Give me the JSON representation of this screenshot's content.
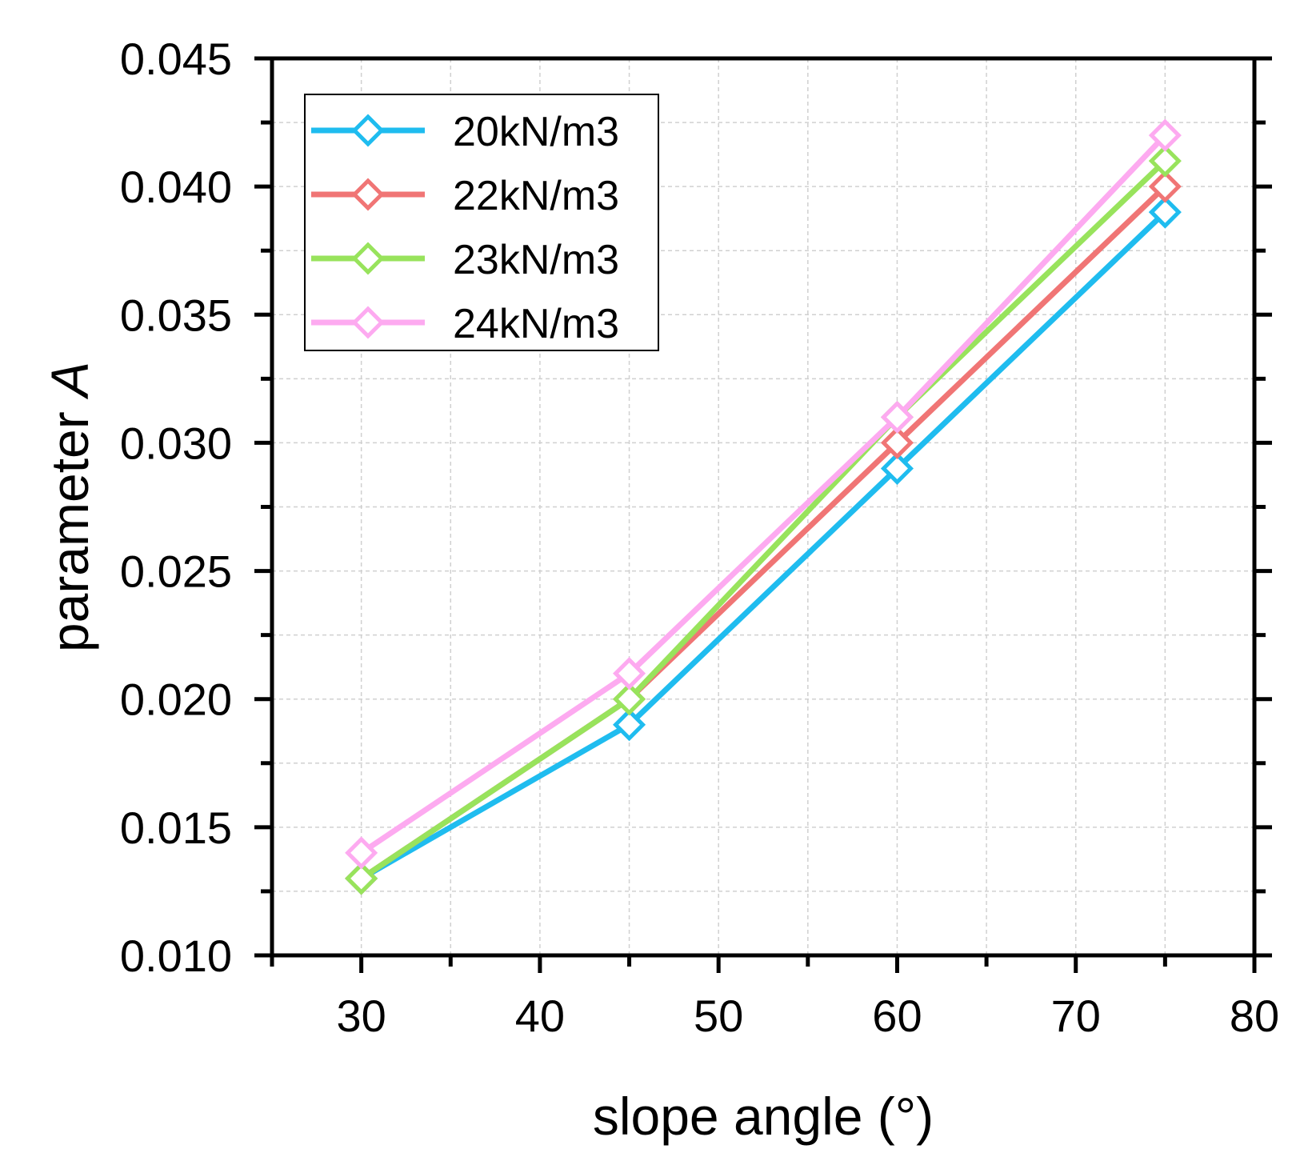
{
  "chart_data": {
    "type": "line",
    "title": "",
    "xlabel": "slope angle (°)",
    "ylabel_prefix": "parameter ",
    "ylabel_italic": "A",
    "xlim": [
      25,
      80
    ],
    "ylim": [
      0.01,
      0.045
    ],
    "x_ticks": [
      30,
      40,
      50,
      60,
      70,
      80
    ],
    "x_tick_labels": [
      "30",
      "40",
      "50",
      "60",
      "70",
      "80"
    ],
    "y_ticks": [
      0.01,
      0.015,
      0.02,
      0.025,
      0.03,
      0.035,
      0.04,
      0.045
    ],
    "y_tick_labels": [
      "0.010",
      "0.015",
      "0.020",
      "0.025",
      "0.030",
      "0.035",
      "0.040",
      "0.045"
    ],
    "grid": true,
    "legend_position": "top-left",
    "marker": "open-diamond",
    "x": [
      30,
      45,
      60,
      75
    ],
    "series": [
      {
        "name": "20kN/m3",
        "color": "#1fbcef",
        "values": [
          0.013,
          0.019,
          0.029,
          0.039
        ]
      },
      {
        "name": "22kN/m3",
        "color": "#f07575",
        "values": [
          0.013,
          0.02,
          0.03,
          0.04
        ]
      },
      {
        "name": "23kN/m3",
        "color": "#98e35c",
        "values": [
          0.013,
          0.02,
          0.031,
          0.041
        ]
      },
      {
        "name": "24kN/m3",
        "color": "#fdaaf0",
        "values": [
          0.014,
          0.021,
          0.031,
          0.042
        ]
      }
    ]
  }
}
